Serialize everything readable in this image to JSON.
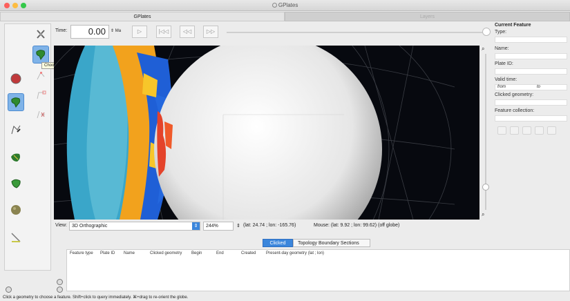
{
  "window": {
    "title": "GPlates"
  },
  "tabs": [
    {
      "label": "GPlates",
      "active": true
    },
    {
      "label": "Layers",
      "active": false
    }
  ],
  "tooltip": "Choose Feature F",
  "time": {
    "label": "Time:",
    "value": "0.00",
    "unit": "Ma"
  },
  "playback": [
    "play-icon",
    "rewind-to-start-icon",
    "step-back-icon",
    "step-forward-icon"
  ],
  "view": {
    "label": "View:",
    "projection": "3D Orthographic",
    "zoom": "244%",
    "camera": "(lat: 24.74 ; lon: -165.76)",
    "mouse": "Mouse: (lat: 9.92 ; lon: 99.62) (off globe)"
  },
  "current_feature": {
    "heading": "Current Feature",
    "type_label": "Type:",
    "name_label": "Name:",
    "plate_label": "Plate ID:",
    "valid_label": "Valid time:",
    "from_label": "from",
    "to_label": "to",
    "geom_label": "Clicked geometry:",
    "collection_label": "Feature collection:"
  },
  "bottom_tabs": [
    {
      "label": "Clicked",
      "active": true
    },
    {
      "label": "Topology Boundary Sections",
      "active": false
    }
  ],
  "table_columns": [
    "Feature type",
    "Plate ID",
    "Name",
    "Clicked geometry",
    "Begin",
    "End",
    "Created",
    "Present-day geometry (lat ; lon)"
  ],
  "status": "Click a geometry to choose a feature. Shift+click to query immediately. ⌘+drag to re-orient the globe.",
  "colors": {
    "accent": "#3b86dc",
    "globe_bg": "#07090f",
    "selected_tool": "#7fb3e8"
  }
}
